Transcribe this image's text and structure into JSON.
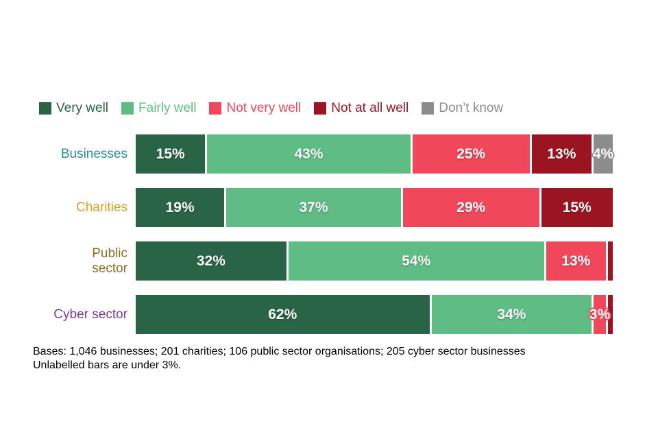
{
  "legend": {
    "items": [
      {
        "key": "very_well",
        "label": "Very well"
      },
      {
        "key": "fairly_well",
        "label": "Fairly well"
      },
      {
        "key": "not_very_well",
        "label": "Not very well"
      },
      {
        "key": "not_at_all_well",
        "label": "Not at all well"
      },
      {
        "key": "dont_know",
        "label": "Don’t know"
      }
    ]
  },
  "colors": {
    "very_well": "#2A6446",
    "fairly_well": "#5FBC84",
    "not_very_well": "#F0475A",
    "not_at_all_well": "#9B1422",
    "dont_know": "#8C8C8C"
  },
  "rows": [
    {
      "label": "Businesses",
      "label_color": "#2B8A99",
      "wrap": false,
      "segments": [
        {
          "key": "very_well",
          "value": 15,
          "label": "15%"
        },
        {
          "key": "fairly_well",
          "value": 43,
          "label": "43%"
        },
        {
          "key": "not_very_well",
          "value": 25,
          "label": "25%"
        },
        {
          "key": "not_at_all_well",
          "value": 13,
          "label": "13%"
        },
        {
          "key": "dont_know",
          "value": 4,
          "label": "4%",
          "overflow": true
        }
      ]
    },
    {
      "label": "Charities",
      "label_color": "#D7A126",
      "wrap": false,
      "segments": [
        {
          "key": "very_well",
          "value": 19,
          "label": "19%"
        },
        {
          "key": "fairly_well",
          "value": 37,
          "label": "37%"
        },
        {
          "key": "not_very_well",
          "value": 29,
          "label": "29%"
        },
        {
          "key": "not_at_all_well",
          "value": 15,
          "label": "15%"
        }
      ]
    },
    {
      "label": "Public sector",
      "label_color": "#8C6E20",
      "wrap": true,
      "segments": [
        {
          "key": "very_well",
          "value": 32,
          "label": "32%"
        },
        {
          "key": "fairly_well",
          "value": 54,
          "label": "54%"
        },
        {
          "key": "not_very_well",
          "value": 13,
          "label": "13%"
        },
        {
          "key": "not_at_all_well",
          "value": 1,
          "label": ""
        }
      ]
    },
    {
      "label": "Cyber sector",
      "label_color": "#7A3CA3",
      "wrap": false,
      "segments": [
        {
          "key": "very_well",
          "value": 62,
          "label": "62%"
        },
        {
          "key": "fairly_well",
          "value": 34,
          "label": "34%"
        },
        {
          "key": "not_very_well",
          "value": 3,
          "label": "3%",
          "overflow": true
        },
        {
          "key": "not_at_all_well",
          "value": 1,
          "label": ""
        }
      ]
    }
  ],
  "footer": {
    "line1": "Bases: 1,046 businesses; 201 charities; 106 public sector organisations; 205 cyber sector businesses",
    "line2": "Unlabelled bars are under 3%."
  },
  "chart_data": {
    "type": "bar",
    "orientation": "horizontal_stacked",
    "categories": [
      "Businesses",
      "Charities",
      "Public sector",
      "Cyber sector"
    ],
    "series": [
      {
        "name": "Very well",
        "values": [
          15,
          19,
          32,
          62
        ]
      },
      {
        "name": "Fairly well",
        "values": [
          43,
          37,
          54,
          34
        ]
      },
      {
        "name": "Not very well",
        "values": [
          25,
          29,
          13,
          3
        ]
      },
      {
        "name": "Not at all well",
        "values": [
          13,
          15,
          1,
          1
        ]
      },
      {
        "name": "Don’t know",
        "values": [
          4,
          0,
          0,
          0
        ]
      }
    ],
    "value_unit": "%",
    "xlim": [
      0,
      100
    ],
    "legend_position": "top",
    "grid": false,
    "notes": [
      "Bases: 1,046 businesses; 201 charities; 106 public sector organisations; 205 cyber sector businesses",
      "Unlabelled bars are under 3%."
    ]
  }
}
